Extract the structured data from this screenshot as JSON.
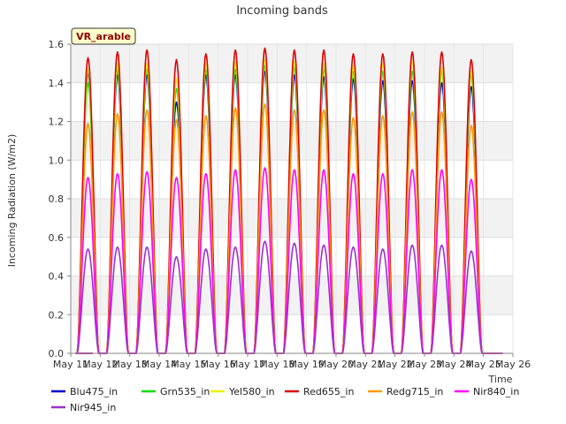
{
  "chart_data": {
    "type": "line",
    "title": "Incoming bands",
    "xlabel": "Time",
    "ylabel": "Incoming Radiation (W/m2)",
    "site_label": "VR_arable",
    "ylim": [
      0.0,
      1.6
    ],
    "yticks": [
      "0.0",
      "0.2",
      "0.4",
      "0.6",
      "0.8",
      "1.0",
      "1.2",
      "1.4",
      "1.6"
    ],
    "xticks": [
      "May 11",
      "May 12",
      "May 13",
      "May 14",
      "May 15",
      "May 16",
      "May 17",
      "May 18",
      "May 19",
      "May 20",
      "May 21",
      "May 22",
      "May 23",
      "May 24",
      "May 25",
      "May 26"
    ],
    "xlim_days": [
      11,
      26
    ],
    "day_peaks": {
      "days": [
        12,
        13,
        14,
        15,
        16,
        17,
        18,
        19,
        20,
        21,
        22,
        23,
        24,
        25
      ],
      "Blu475_in": [
        1.45,
        1.44,
        1.44,
        1.3,
        1.44,
        1.44,
        1.46,
        1.44,
        1.43,
        1.42,
        1.41,
        1.41,
        1.4,
        1.38
      ],
      "Grn535_in": [
        1.4,
        1.47,
        1.47,
        1.37,
        1.47,
        1.47,
        1.49,
        1.48,
        1.47,
        1.46,
        1.46,
        1.46,
        1.46,
        1.44
      ],
      "Yel580_in": [
        1.47,
        1.5,
        1.5,
        1.42,
        1.5,
        1.51,
        1.52,
        1.51,
        1.5,
        1.49,
        1.5,
        1.51,
        1.48,
        1.46
      ],
      "Red655_in": [
        1.53,
        1.56,
        1.57,
        1.52,
        1.55,
        1.57,
        1.58,
        1.57,
        1.57,
        1.55,
        1.55,
        1.56,
        1.56,
        1.52
      ],
      "Redg715_in": [
        1.19,
        1.24,
        1.26,
        1.21,
        1.23,
        1.27,
        1.29,
        1.26,
        1.26,
        1.22,
        1.23,
        1.25,
        1.25,
        1.18
      ],
      "Nir840_in": [
        0.91,
        0.93,
        0.94,
        0.91,
        0.93,
        0.95,
        0.96,
        0.95,
        0.95,
        0.93,
        0.93,
        0.95,
        0.95,
        0.9
      ],
      "Nir945_in": [
        0.54,
        0.55,
        0.55,
        0.5,
        0.54,
        0.55,
        0.58,
        0.57,
        0.56,
        0.55,
        0.54,
        0.56,
        0.56,
        0.53
      ]
    },
    "series": [
      {
        "name": "Blu475_in",
        "color": "#0000cc"
      },
      {
        "name": "Grn535_in",
        "color": "#00dd00"
      },
      {
        "name": "Yel580_in",
        "color": "#eeee00"
      },
      {
        "name": "Red655_in",
        "color": "#dd0000"
      },
      {
        "name": "Redg715_in",
        "color": "#ff9900"
      },
      {
        "name": "Nir840_in",
        "color": "#ff00ff"
      },
      {
        "name": "Nir945_in",
        "color": "#9933cc"
      }
    ],
    "grid": true,
    "legend_position": "bottom"
  }
}
